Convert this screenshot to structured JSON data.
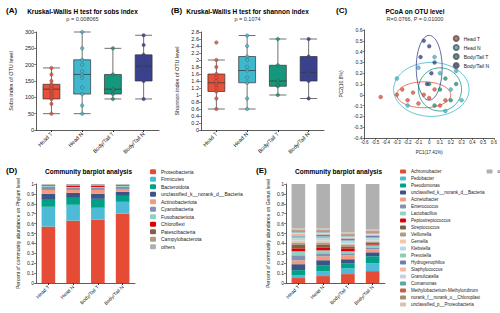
{
  "chart_data": [
    {
      "type": "boxplot",
      "panel": "(A)",
      "title": "Kruskal-Wallis H test for sobs index",
      "subtitle": "p = 0.008065",
      "y_label": "Sobs index of OTU level",
      "categories": [
        "Head T",
        "Head N",
        "Body/Tail T",
        "Body/Tail N"
      ],
      "colors": [
        "#e8503a",
        "#3fb7cc",
        "#15977c",
        "#3a4290"
      ],
      "boxes": [
        [
          50,
          95,
          125,
          140,
          190
        ],
        [
          50,
          110,
          170,
          215,
          300
        ],
        [
          95,
          110,
          125,
          170,
          250
        ],
        [
          95,
          150,
          195,
          230,
          290
        ]
      ],
      "points": [
        [
          50,
          80,
          95,
          100,
          105,
          110,
          115,
          120,
          125,
          130,
          135,
          140,
          150,
          170,
          190
        ],
        [
          50,
          75,
          110,
          130,
          160,
          170,
          180,
          200,
          215,
          250,
          300
        ],
        [
          95,
          110,
          120,
          125,
          170,
          250
        ],
        [
          95,
          150,
          180,
          195,
          210,
          230,
          260,
          290
        ]
      ],
      "ylim": [
        0,
        300
      ],
      "yticks": [
        0,
        50,
        100,
        150,
        200,
        250,
        300
      ],
      "grid": false
    },
    {
      "type": "boxplot",
      "panel": "(B)",
      "title": "Kruskal-Wallis H test for shannon index",
      "subtitle": "p = 0.1074",
      "y_label": "Shannon index of OTU level",
      "categories": [
        "Head T",
        "Head N",
        "Body/Tail T",
        "Body/Tail N"
      ],
      "colors": [
        "#e8503a",
        "#3fb7cc",
        "#15977c",
        "#3a4290"
      ],
      "boxes": [
        [
          0.6,
          1.1,
          1.35,
          1.6,
          2.0
        ],
        [
          0.6,
          1.35,
          1.7,
          2.1,
          2.7
        ],
        [
          1.0,
          1.25,
          1.4,
          1.85,
          2.6
        ],
        [
          0.9,
          1.4,
          1.65,
          2.1,
          2.6
        ]
      ],
      "points": [
        [
          0.6,
          0.9,
          1.1,
          1.2,
          1.3,
          1.35,
          1.4,
          1.5,
          1.6,
          1.8,
          2.0,
          2.5
        ],
        [
          0.6,
          0.9,
          1.35,
          1.5,
          1.7,
          1.8,
          2.0,
          2.1,
          2.4,
          2.7
        ],
        [
          1.0,
          1.25,
          1.3,
          1.4,
          1.85,
          2.6
        ],
        [
          0.9,
          1.4,
          1.55,
          1.65,
          1.9,
          2.1,
          2.6
        ]
      ],
      "ylim": [
        0,
        2.8
      ],
      "yticks": [
        0,
        0.2,
        0.4,
        0.6,
        0.8,
        1,
        1.2,
        1.4,
        1.6,
        1.8,
        2,
        2.2,
        2.4,
        2.6,
        2.8
      ],
      "grid": false
    },
    {
      "type": "scatter",
      "panel": "(C)",
      "title": "PCoA on OTU level",
      "subtitle": "R=0.0766, P = 0.01000",
      "x_label": "PC1(17.41%)",
      "y_label": "PC2(10.8%)",
      "legend": "top-right",
      "series": [
        {
          "name": "Head T",
          "color": "#e8503a",
          "points": [
            [
              -0.45,
              -0.02
            ],
            [
              -0.3,
              0.0
            ],
            [
              -0.2,
              -0.05
            ],
            [
              -0.15,
              0.02
            ],
            [
              -0.1,
              -0.08
            ],
            [
              -0.05,
              0.0
            ],
            [
              0.0,
              -0.03
            ],
            [
              0.05,
              0.05
            ],
            [
              0.1,
              -0.1
            ],
            [
              -0.25,
              0.05
            ],
            [
              0.15,
              -0.05
            ]
          ],
          "ellipse": {
            "center": [
              -0.05,
              0.0
            ],
            "radii": [
              0.25,
              0.12
            ]
          }
        },
        {
          "name": "Head N",
          "color": "#3fb7cc",
          "points": [
            [
              -0.3,
              0.15
            ],
            [
              -0.2,
              -0.1
            ],
            [
              0.05,
              0.35
            ],
            [
              0.1,
              0.2
            ],
            [
              0.2,
              0.05
            ],
            [
              0.3,
              -0.05
            ],
            [
              0.25,
              0.22
            ],
            [
              -0.1,
              0.25
            ],
            [
              0.15,
              -0.15
            ]
          ],
          "ellipse": {
            "center": [
              0.02,
              0.05
            ],
            "radii": [
              0.35,
              0.25
            ]
          }
        },
        {
          "name": "Body/Tail T",
          "color": "#15977c",
          "points": [
            [
              0.0,
              0.1
            ],
            [
              0.1,
              0.05
            ],
            [
              0.15,
              0.15
            ],
            [
              0.2,
              -0.05
            ],
            [
              0.05,
              -0.1
            ],
            [
              0.25,
              0.1
            ]
          ],
          "ellipse": {
            "center": [
              0.1,
              0.05
            ],
            "radii": [
              0.2,
              0.2
            ]
          }
        },
        {
          "name": "Body/Tail N",
          "color": "#3a4290",
          "points": [
            [
              -0.05,
              0.5
            ],
            [
              0.0,
              0.45
            ],
            [
              0.05,
              0.3
            ],
            [
              -0.02,
              0.1
            ],
            [
              0.02,
              0.2
            ],
            [
              -0.08,
              0.35
            ]
          ],
          "ellipse": {
            "center": [
              0.0,
              0.25
            ],
            "radii": [
              0.12,
              0.3
            ]
          }
        }
      ],
      "xlim": [
        -0.6,
        0.6
      ],
      "xticks": [
        -0.6,
        -0.5,
        -0.4,
        -0.3,
        -0.2,
        -0.1,
        0,
        0.1,
        0.2,
        0.3,
        0.4,
        0.5,
        0.6
      ],
      "ylim": [
        -0.4,
        0.6
      ],
      "yticks": [
        -0.4,
        -0.3,
        -0.2,
        -0.1,
        0,
        0.1,
        0.2,
        0.3,
        0.4,
        0.5,
        0.6
      ],
      "grid": false
    },
    {
      "type": "bar",
      "panel": "(D)",
      "title": "Community barplot analysis",
      "stacked": true,
      "legend": "right",
      "y_label": "Percent of community abundance on Phylum level",
      "categories": [
        "Head T",
        "Head N",
        "Body/Tail T",
        "Body/Tail N"
      ],
      "series": [
        {
          "name": "Proteobacteria",
          "color": "#e64b35",
          "values": [
            0.57,
            0.63,
            0.64,
            0.7
          ]
        },
        {
          "name": "Firmicutes",
          "color": "#4dbbd5",
          "values": [
            0.2,
            0.16,
            0.12,
            0.12
          ]
        },
        {
          "name": "Bacteroidota",
          "color": "#00a087",
          "values": [
            0.07,
            0.07,
            0.09,
            0.06
          ]
        },
        {
          "name": "unclassified_k__norank_d__Bacteria",
          "color": "#3c5488",
          "values": [
            0.06,
            0.05,
            0.05,
            0.04
          ]
        },
        {
          "name": "Actinobacteriota",
          "color": "#f39b7f",
          "values": [
            0.04,
            0.03,
            0.04,
            0.03
          ]
        },
        {
          "name": "Cyanobacteria",
          "color": "#8491b4",
          "values": [
            0.03,
            0.02,
            0.02,
            0.02
          ]
        },
        {
          "name": "Fusobacteriota",
          "color": "#91d1c2",
          "values": [
            0.01,
            0.01,
            0.01,
            0.01
          ]
        },
        {
          "name": "Chloroflexi",
          "color": "#dc0000",
          "values": [
            0.005,
            0.01,
            0.01,
            0.005
          ]
        },
        {
          "name": "Patescibacteria",
          "color": "#7e6148",
          "values": [
            0.005,
            0.005,
            0.005,
            0.005
          ]
        },
        {
          "name": "Campylobacterota",
          "color": "#b09c85",
          "values": [
            0.005,
            0.005,
            0.005,
            0.005
          ]
        },
        {
          "name": "others",
          "color": "#b0b0b0",
          "values": [
            0.005,
            0.01,
            0.01,
            0.005
          ]
        }
      ],
      "ylim": [
        0,
        1
      ],
      "yticks": [
        0,
        0.1,
        0.2,
        0.3,
        0.4,
        0.5,
        0.6,
        0.7,
        0.8,
        0.9,
        1
      ],
      "grid": false
    },
    {
      "type": "bar",
      "panel": "(E)",
      "title": "Community barplot analysis",
      "stacked": true,
      "legend": "right",
      "y_label": "Percent of community abundance on Genus level",
      "categories": [
        "Head T",
        "Head N",
        "Body/Tail T",
        "Body/Tail N"
      ],
      "series": [
        {
          "name": "Achromobacter",
          "color": "#e64b35",
          "values": [
            0.05,
            0.07,
            0.09,
            0.12
          ]
        },
        {
          "name": "Pedobacter",
          "color": "#4dbbd5",
          "values": [
            0.03,
            0.05,
            0.06,
            0.08
          ]
        },
        {
          "name": "Pseudomonas",
          "color": "#00a087",
          "values": [
            0.05,
            0.06,
            0.05,
            0.07
          ]
        },
        {
          "name": "unclassified_k__norank_d__Bacteria",
          "color": "#3c5488",
          "values": [
            0.06,
            0.05,
            0.04,
            0.04
          ]
        },
        {
          "name": "Acinetobacter",
          "color": "#f39b7f",
          "values": [
            0.04,
            0.04,
            0.04,
            0.03
          ]
        },
        {
          "name": "Enterococcus",
          "color": "#8491b4",
          "values": [
            0.05,
            0.03,
            0.02,
            0.02
          ]
        },
        {
          "name": "Lactobacillus",
          "color": "#91d1c2",
          "values": [
            0.04,
            0.03,
            0.02,
            0.02
          ]
        },
        {
          "name": "Peptostreptococcus",
          "color": "#dc0000",
          "values": [
            0.03,
            0.03,
            0.03,
            0.01
          ]
        },
        {
          "name": "Streptococcus",
          "color": "#7e6148",
          "values": [
            0.04,
            0.03,
            0.02,
            0.02
          ]
        },
        {
          "name": "Veillonella",
          "color": "#b09c85",
          "values": [
            0.02,
            0.02,
            0.02,
            0.01
          ]
        },
        {
          "name": "Gemella",
          "color": "#f7c6a8",
          "values": [
            0.02,
            0.02,
            0.01,
            0.01
          ]
        },
        {
          "name": "Klebsiella",
          "color": "#b5d8e8",
          "values": [
            0.02,
            0.02,
            0.02,
            0.02
          ]
        },
        {
          "name": "Prevotella",
          "color": "#8fcbb0",
          "values": [
            0.02,
            0.02,
            0.01,
            0.01
          ]
        },
        {
          "name": "Hydrogenophilus",
          "color": "#6a7fb0",
          "values": [
            0.01,
            0.02,
            0.02,
            0.02
          ]
        },
        {
          "name": "Staphylococcus",
          "color": "#f6b6a0",
          "values": [
            0.02,
            0.01,
            0.01,
            0.01
          ]
        },
        {
          "name": "Granulicatella",
          "color": "#c9cfe3",
          "values": [
            0.01,
            0.01,
            0.01,
            0.01
          ]
        },
        {
          "name": "Comamonas",
          "color": "#5fa8a0",
          "values": [
            0.01,
            0.01,
            0.01,
            0.01
          ]
        },
        {
          "name": "Methylobacterium-Methylorubrum",
          "color": "#c45e4a",
          "values": [
            0.01,
            0.01,
            0.01,
            0.01
          ]
        },
        {
          "name": "norank_f__norank_o__Chloroplast",
          "color": "#a78b6c",
          "values": [
            0.01,
            0.01,
            0.01,
            0.01
          ]
        },
        {
          "name": "unclassified_p__Proteobacteria",
          "color": "#d4c4b0",
          "values": [
            0.01,
            0.01,
            0.01,
            0.01
          ]
        },
        {
          "name": "others",
          "color": "#b0b0b0",
          "values": [
            0.45,
            0.45,
            0.49,
            0.46
          ]
        }
      ],
      "ylim": [
        0,
        1
      ],
      "yticks": [
        0,
        0.1,
        0.2,
        0.3,
        0.4,
        0.5,
        0.6,
        0.7,
        0.8,
        0.9,
        1
      ],
      "grid": false
    }
  ]
}
